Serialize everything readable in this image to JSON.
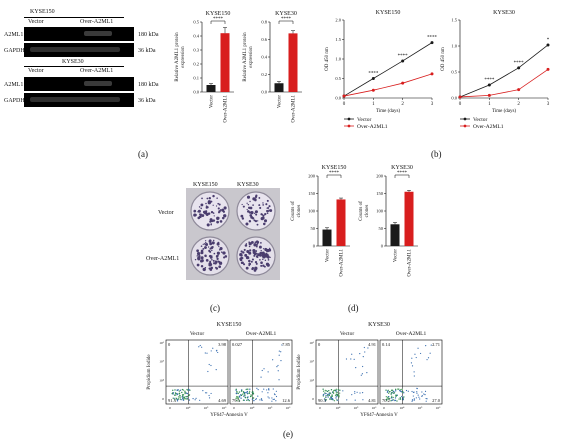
{
  "panel_labels": {
    "a": "(a)",
    "b": "(b)",
    "c": "(c)",
    "d": "(d)",
    "e": "(e)"
  },
  "western_blot": {
    "kyse150": {
      "cell": "KYSE150",
      "lanes": [
        "Vector",
        "Over-A2ML1"
      ],
      "rows": [
        {
          "protein": "A2ML1",
          "size": "180 kDa"
        },
        {
          "protein": "GAPDH",
          "size": "36 kDa"
        }
      ]
    },
    "kyse30": {
      "cell": "KYSE30",
      "lanes": [
        "Vector",
        "Over-A2ML1"
      ],
      "rows": [
        {
          "protein": "A2ML1",
          "size": "180 kDa"
        },
        {
          "protein": "GAPDH",
          "size": "36 kDa"
        }
      ]
    }
  },
  "colors": {
    "control": "#1a1a1a",
    "treatment": "#d81e1e"
  },
  "colony_photo": {
    "columns": [
      "KYSE150",
      "KYSE30"
    ],
    "rows": [
      "Vector",
      "Over-A2ML1"
    ]
  },
  "flow": {
    "kyse150": {
      "title": "KYSE150",
      "cols": [
        "Vector",
        "Over-A2ML1"
      ],
      "quads": [
        {
          "ul": "0",
          "ur": "3.98",
          "ll": "91.3",
          "lr": "4.69"
        },
        {
          "ul": "0.027",
          "ur": "7.85",
          "ll": "79.5",
          "lr": "12.6"
        }
      ]
    },
    "kyse30": {
      "title": "KYSE30",
      "cols": [
        "Vector",
        "Over-A2ML1"
      ],
      "quads": [
        {
          "ul": "0",
          "ur": "4.91",
          "ll": "90.3",
          "lr": "4.81"
        },
        {
          "ul": "0.14",
          "ur": "2.71",
          "ll": "70.2",
          "lr": "27.0"
        }
      ]
    },
    "ylabel": "Propidium Iodide",
    "xlabel": "YF647-Annexin V",
    "ticks": {
      "x": [
        "0",
        "10⁴",
        "10⁵",
        "10⁶"
      ],
      "y": [
        "0",
        "10⁴",
        "10⁵",
        "10⁶"
      ]
    }
  },
  "chart_data": [
    {
      "type": "bar",
      "title": "KYSE150",
      "categories": [
        "Vector",
        "Over-A2ML1"
      ],
      "values": [
        0.05,
        0.42
      ],
      "errors": [
        0.01,
        0.04
      ],
      "ylabel": "Relative A2ML1 protein expression",
      "ylim": [
        0,
        0.5
      ],
      "yticks": [
        "0.0",
        "0.1",
        "0.2",
        "0.3",
        "0.4",
        "0.5"
      ],
      "significance": "****"
    },
    {
      "type": "bar",
      "title": "KYSE30",
      "categories": [
        "Vector",
        "Over-A2ML1"
      ],
      "values": [
        0.1,
        0.67
      ],
      "errors": [
        0.02,
        0.03
      ],
      "ylabel": "Relative A2ML1 protein expression",
      "ylim": [
        0,
        0.8
      ],
      "yticks": [
        "0.0",
        "0.2",
        "0.4",
        "0.6",
        "0.8"
      ],
      "significance": "****"
    },
    {
      "type": "line",
      "title": "KYSE150",
      "x": [
        0,
        1,
        2,
        3
      ],
      "xlabel": "Time (days)",
      "ylabel": "OD 450 nm",
      "xlim": [
        0,
        3
      ],
      "ylim": [
        0,
        2.0
      ],
      "xticks": [
        "0",
        "1",
        "2",
        "3"
      ],
      "yticks": [
        "0.0",
        "0.5",
        "1.0",
        "1.5",
        "2.0"
      ],
      "series": [
        {
          "name": "Vector",
          "values": [
            0.05,
            0.5,
            0.95,
            1.42
          ]
        },
        {
          "name": "Over-A2ML1",
          "values": [
            0.05,
            0.2,
            0.38,
            0.62
          ]
        }
      ],
      "annotations": [
        "****",
        "****",
        "****"
      ],
      "legend": "bottom"
    },
    {
      "type": "line",
      "title": "KYSE30",
      "x": [
        0,
        1,
        2,
        3
      ],
      "xlabel": "Time (days)",
      "ylabel": "OD 450 nm",
      "xlim": [
        0,
        3
      ],
      "ylim": [
        0,
        1.5
      ],
      "xticks": [
        "0",
        "1",
        "2",
        "3"
      ],
      "yticks": [
        "0.0",
        "0.5",
        "1.0",
        "1.5"
      ],
      "series": [
        {
          "name": "Vector",
          "values": [
            0.02,
            0.25,
            0.58,
            1.02
          ]
        },
        {
          "name": "Over-A2ML1",
          "values": [
            0.02,
            0.05,
            0.16,
            0.55
          ]
        }
      ],
      "annotations": [
        "****",
        "****",
        "*"
      ],
      "legend": "bottom"
    },
    {
      "type": "bar",
      "title": "KYSE150",
      "categories": [
        "Vector",
        "Over-A2ML1"
      ],
      "values": [
        47,
        133
      ],
      "errors": [
        5,
        4
      ],
      "ylabel": "Counts of clones",
      "ylim": [
        0,
        200
      ],
      "yticks": [
        "0",
        "50",
        "100",
        "150",
        "200"
      ],
      "significance": "****"
    },
    {
      "type": "bar",
      "title": "KYSE30",
      "categories": [
        "Vector",
        "Over-A2ML1"
      ],
      "values": [
        62,
        155
      ],
      "errors": [
        5,
        4
      ],
      "ylabel": "Counts of clones",
      "ylim": [
        0,
        200
      ],
      "yticks": [
        "0",
        "50",
        "100",
        "150",
        "200"
      ],
      "significance": "****"
    }
  ]
}
